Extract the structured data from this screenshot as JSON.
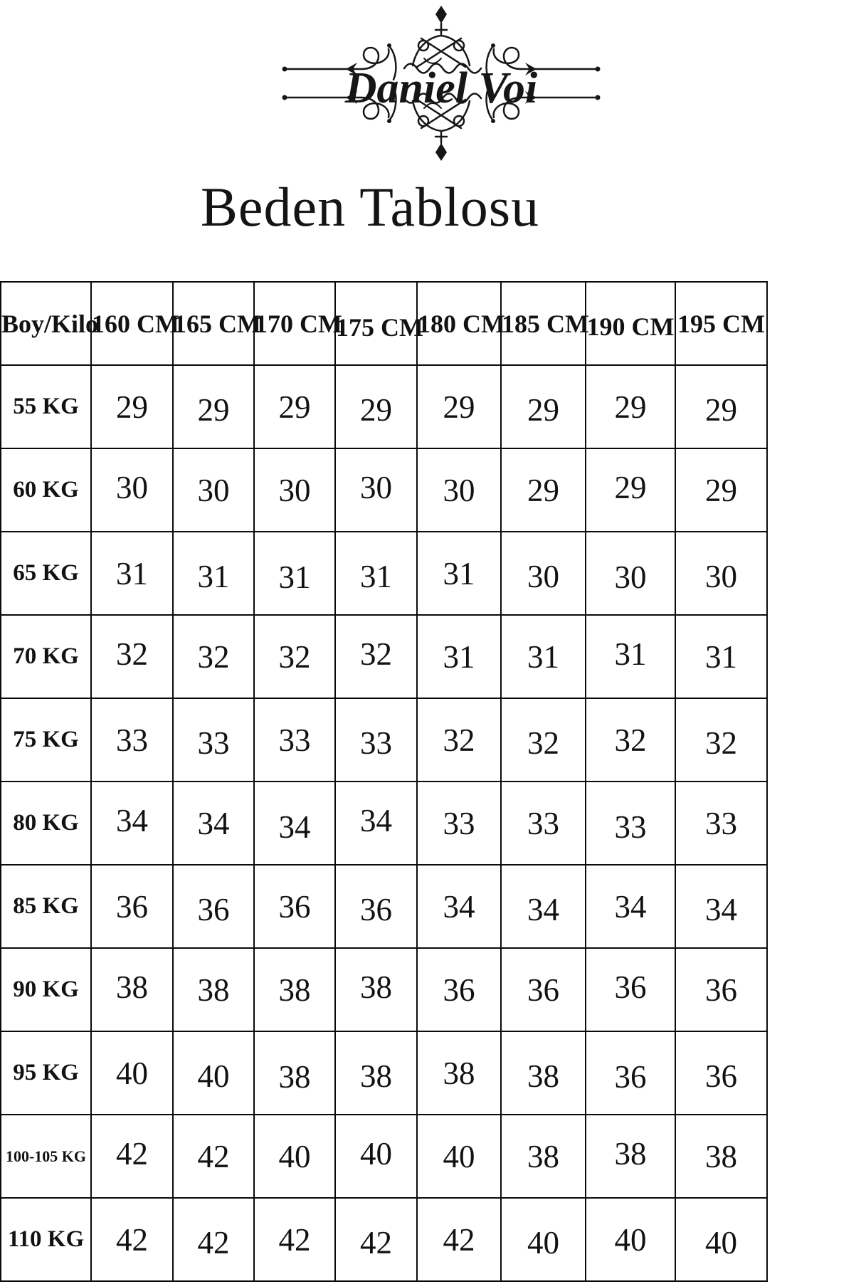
{
  "brand": {
    "name": "Daniel Voi"
  },
  "page_title": "Beden Tablosu",
  "table": {
    "corner_label": "Boy/Kilo",
    "column_headers": [
      "160 CM",
      "165 CM",
      "170 CM",
      "175 CM",
      "180 CM",
      "185 CM",
      "190 CM",
      "195 CM"
    ],
    "rows": [
      {
        "label": "55 KG",
        "values": [
          29,
          29,
          29,
          29,
          29,
          29,
          29,
          29
        ]
      },
      {
        "label": "60 KG",
        "values": [
          30,
          30,
          30,
          30,
          30,
          29,
          29,
          29
        ]
      },
      {
        "label": "65 KG",
        "values": [
          31,
          31,
          31,
          31,
          31,
          30,
          30,
          30
        ]
      },
      {
        "label": "70 KG",
        "values": [
          32,
          32,
          32,
          32,
          31,
          31,
          31,
          31
        ]
      },
      {
        "label": "75 KG",
        "values": [
          33,
          33,
          33,
          33,
          32,
          32,
          32,
          32
        ]
      },
      {
        "label": "80 KG",
        "values": [
          34,
          34,
          34,
          34,
          33,
          33,
          33,
          33
        ]
      },
      {
        "label": "85 KG",
        "values": [
          36,
          36,
          36,
          36,
          34,
          34,
          34,
          34
        ]
      },
      {
        "label": "90 KG",
        "values": [
          38,
          38,
          38,
          38,
          36,
          36,
          36,
          36
        ]
      },
      {
        "label": "95 KG",
        "values": [
          40,
          40,
          38,
          38,
          38,
          38,
          36,
          36
        ]
      },
      {
        "label": "100-105 KG",
        "values": [
          42,
          42,
          40,
          40,
          40,
          38,
          38,
          38
        ]
      },
      {
        "label": "110 KG",
        "values": [
          42,
          42,
          42,
          42,
          42,
          40,
          40,
          40
        ]
      }
    ]
  },
  "colors": {
    "background": "#ffffff",
    "ink": "#121212",
    "border": "#0b0b0b"
  }
}
